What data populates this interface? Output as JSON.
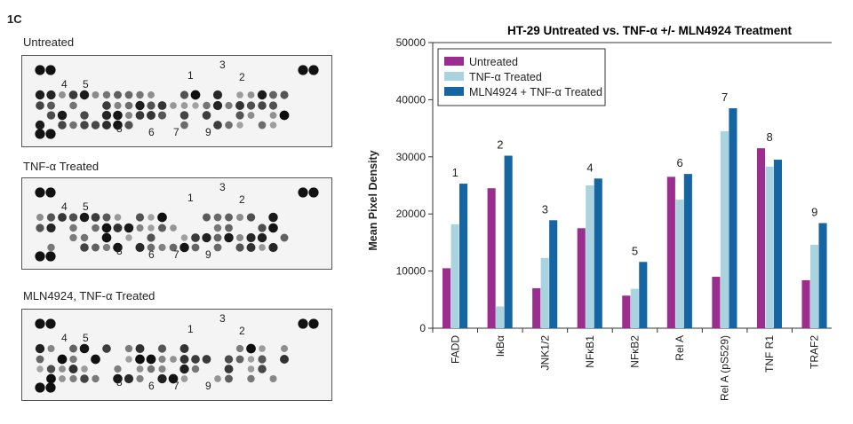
{
  "figure_label": "1C",
  "blots": [
    {
      "title": "Untreated"
    },
    {
      "title": "TNF-α Treated"
    },
    {
      "title": "MLN4924, TNF-α Treated"
    }
  ],
  "spot_labels": [
    "1",
    "2",
    "3",
    "4",
    "5",
    "6",
    "7",
    "8",
    "9"
  ],
  "colors": {
    "untreated": "#9b2d8f",
    "tnf": "#aad3e0",
    "mln": "#1565a3"
  },
  "chart_data": {
    "type": "bar",
    "title": "HT-29 Untreated vs. TNF-α +/- MLN4924 Treatment",
    "ylabel": "Mean Pixel Density",
    "xlabel": "",
    "ylim": [
      0,
      50000
    ],
    "yticks": [
      0,
      10000,
      20000,
      30000,
      40000,
      50000
    ],
    "yticklabels": [
      "0",
      "10000",
      "20000",
      "30000",
      "40000",
      "50000"
    ],
    "categories": [
      "FADD",
      "IκBα",
      "JNK1/2",
      "NFκB1",
      "NFκB2",
      "Rel A",
      "Rel A (pS529)",
      "TNF R1",
      "TRAF2"
    ],
    "data_labels": [
      "1",
      "2",
      "3",
      "4",
      "5",
      "6",
      "7",
      "8",
      "9"
    ],
    "legend_position": "top-left",
    "grid": false,
    "series": [
      {
        "name": "Untreated",
        "color": "#9b2d8f",
        "values": [
          10500,
          24500,
          7000,
          17500,
          5700,
          26500,
          9000,
          31500,
          8400
        ]
      },
      {
        "name": "TNF-α Treated",
        "color": "#aad3e0",
        "values": [
          18200,
          3800,
          12300,
          25000,
          6900,
          22500,
          34500,
          28300,
          14600
        ]
      },
      {
        "name": "MLN4924 + TNF-α Treated",
        "color": "#1565a3",
        "values": [
          25300,
          30200,
          18900,
          26200,
          11600,
          27000,
          38500,
          29500,
          18400
        ]
      }
    ]
  }
}
